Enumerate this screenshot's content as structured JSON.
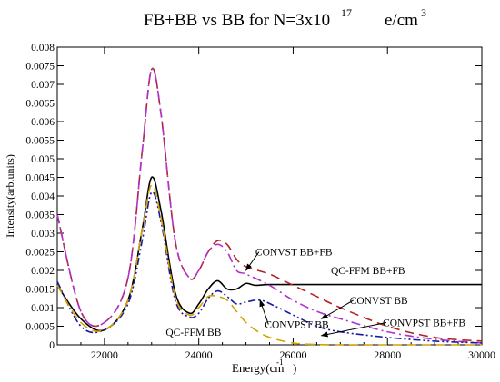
{
  "chart_data": {
    "type": "line",
    "title": "FB+BB vs BB for N=3x10",
    "title_exponent": "17",
    "title_suffix": "e/cm",
    "title_suffix_exponent": "3",
    "xlabel": "Energy(cm",
    "xlabel_exponent": "-1",
    "xlabel_suffix": ")",
    "ylabel": "Intensity(arb.units)",
    "xlim": [
      21000,
      30000
    ],
    "ylim": [
      0,
      0.008
    ],
    "xticks": [
      22000,
      24000,
      26000,
      28000,
      30000
    ],
    "xtick_labels": [
      "22000",
      "24000",
      "26000",
      "28000",
      "30000"
    ],
    "yticks": [
      0,
      0.0005,
      0.001,
      0.0015,
      0.002,
      0.0025,
      0.003,
      0.0035,
      0.004,
      0.0045,
      0.005,
      0.0055,
      0.006,
      0.0065,
      0.007,
      0.0075,
      0.008
    ],
    "ytick_labels": [
      "0",
      "0.0005",
      "0.001",
      "0.0015",
      "0.002",
      "0.0025",
      "0.003",
      "0.0035",
      "0.004",
      "0.0045",
      "0.005",
      "0.0055",
      "0.006",
      "0.0065",
      "0.007",
      "0.0075",
      "0.008"
    ],
    "grid": false,
    "series": [
      {
        "name": "QC-FFM BB+FB",
        "color": "#000000",
        "style": "solid",
        "x": [
          21000,
          21500,
          22000,
          22500,
          22800,
          23000,
          23200,
          23500,
          23800,
          24000,
          24200,
          24400,
          24600,
          24800,
          25000,
          25200,
          25500,
          26000,
          27000,
          28000,
          29000,
          30000
        ],
        "y": [
          0.0016,
          0.0007,
          0.0004,
          0.0012,
          0.0031,
          0.0045,
          0.0036,
          0.0014,
          0.00085,
          0.0011,
          0.0015,
          0.00172,
          0.0015,
          0.0015,
          0.00165,
          0.0016,
          0.00162,
          0.00162,
          0.00162,
          0.00162,
          0.00162,
          0.00162
        ]
      },
      {
        "name": "CONVST BB+FB",
        "color": "#b22222",
        "style": "dash",
        "x": [
          21000,
          21500,
          22000,
          22500,
          22800,
          23000,
          23200,
          23500,
          23800,
          24000,
          24200,
          24400,
          24600,
          24800,
          25000,
          25500,
          26000,
          26500,
          27000,
          28000,
          29000,
          30000
        ],
        "y": [
          0.0035,
          0.0009,
          0.0006,
          0.0018,
          0.0052,
          0.0074,
          0.0062,
          0.0028,
          0.0018,
          0.002,
          0.0025,
          0.0028,
          0.0027,
          0.0023,
          0.0021,
          0.0019,
          0.0016,
          0.0013,
          0.001,
          0.0005,
          0.0002,
          0.0001
        ]
      },
      {
        "name": "CONVST BB",
        "color": "#b030d0",
        "style": "dashdot",
        "x": [
          21000,
          21500,
          22000,
          22500,
          22800,
          23000,
          23200,
          23500,
          23800,
          24000,
          24200,
          24400,
          24600,
          24800,
          25000,
          25500,
          26000,
          26500,
          27000,
          28000,
          29000,
          30000
        ],
        "y": [
          0.0035,
          0.0009,
          0.0006,
          0.0018,
          0.0052,
          0.0074,
          0.0062,
          0.0028,
          0.0018,
          0.002,
          0.0025,
          0.0027,
          0.0025,
          0.002,
          0.0019,
          0.0016,
          0.0012,
          0.0009,
          0.0007,
          0.00035,
          0.00015,
          5e-05
        ]
      },
      {
        "name": "CONVPST BB+FB",
        "color": "#1a1aa0",
        "style": "dashdotdot",
        "x": [
          21000,
          21500,
          22000,
          22500,
          22800,
          23000,
          23200,
          23500,
          23800,
          24000,
          24200,
          24400,
          24600,
          24800,
          25000,
          25300,
          25600,
          26000,
          26500,
          27000,
          28000,
          29000,
          30000
        ],
        "y": [
          0.0017,
          0.0005,
          0.0004,
          0.0011,
          0.0028,
          0.0041,
          0.0033,
          0.0012,
          0.00075,
          0.00085,
          0.00125,
          0.00145,
          0.0013,
          0.0011,
          0.00115,
          0.0012,
          0.00105,
          0.0008,
          0.0005,
          0.00035,
          0.0002,
          0.0001,
          5e-05
        ]
      },
      {
        "name": "QC-FFM BB",
        "color": "#d4a000",
        "style": "dash",
        "x": [
          21000,
          21500,
          22000,
          22500,
          22800,
          23000,
          23200,
          23500,
          23800,
          24000,
          24200,
          24400,
          24600,
          24800,
          25000,
          25200,
          25500,
          26000,
          26500,
          27000,
          28000,
          30000
        ],
        "y": [
          0.0016,
          0.0006,
          0.0004,
          0.0012,
          0.0031,
          0.0043,
          0.0034,
          0.0013,
          0.0008,
          0.001,
          0.0013,
          0.0013,
          0.0012,
          0.0009,
          0.0006,
          0.0004,
          0.0002,
          5e-05,
          1e-05,
          0,
          0,
          0
        ]
      }
    ],
    "annotations": [
      {
        "text": "CONVST BB+FB",
        "x": 25200,
        "y": 0.0024,
        "arrow_to": [
          25000,
          0.002
        ],
        "arrow": true
      },
      {
        "text": "QC-FFM BB+FB",
        "x": 26800,
        "y": 0.0019,
        "arrow": false
      },
      {
        "text": "CONVST BB",
        "x": 27200,
        "y": 0.0011,
        "arrow_to": [
          26600,
          0.0007
        ],
        "arrow": true
      },
      {
        "text": "CONVPST BB",
        "x": 25400,
        "y": 0.00045,
        "arrow_to": [
          25300,
          0.0012
        ],
        "arrow": true
      },
      {
        "text": "CONVPST BB+FB",
        "x": 27900,
        "y": 0.0005,
        "arrow_to": [
          26600,
          0.00025
        ],
        "arrow": true
      },
      {
        "text": "QC-FFM BB",
        "x": 23300,
        "y": 0.00025,
        "arrow": false
      }
    ]
  }
}
